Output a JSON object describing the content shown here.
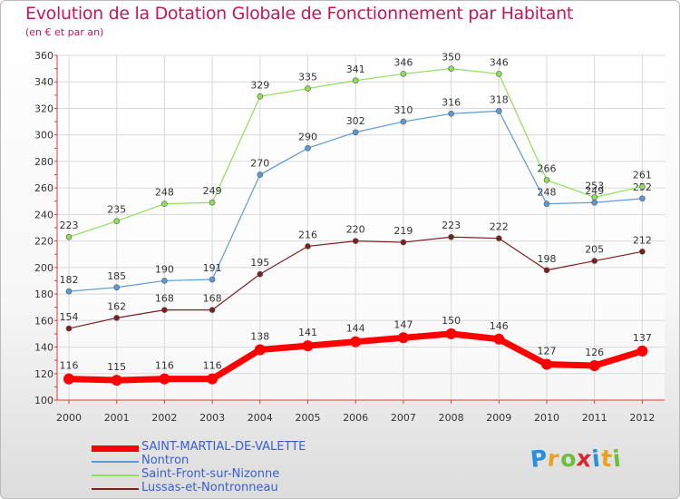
{
  "chart_data": {
    "type": "line",
    "title": "Evolution de la Dotation Globale de Fonctionnement par Habitant",
    "subtitle": "(en € et par an)",
    "xlabel": "",
    "ylabel": "",
    "x": [
      "2000",
      "2001",
      "2002",
      "2003",
      "2004",
      "2005",
      "2006",
      "2007",
      "2008",
      "2009",
      "2010",
      "2011",
      "2012"
    ],
    "ylim": [
      100,
      360
    ],
    "yticks": [
      100,
      120,
      140,
      160,
      180,
      200,
      220,
      240,
      260,
      280,
      300,
      320,
      340,
      360
    ],
    "grid": true,
    "legend_position": "bottom-left",
    "series": [
      {
        "name": "SAINT-MARTIAL-DE-VALETTE",
        "color": "#ff0000",
        "emphasis": true,
        "values": [
          116,
          115,
          116,
          116,
          138,
          141,
          144,
          147,
          150,
          146,
          127,
          126,
          137
        ]
      },
      {
        "name": "Nontron",
        "color": "#5b9bd5",
        "values": [
          182,
          185,
          190,
          191,
          270,
          290,
          302,
          310,
          316,
          318,
          248,
          249,
          252
        ]
      },
      {
        "name": "Saint-Front-sur-Nizonne",
        "color": "#8ee05a",
        "values": [
          223,
          235,
          248,
          249,
          329,
          335,
          341,
          346,
          350,
          346,
          266,
          253,
          261
        ]
      },
      {
        "name": "Lussas-et-Nontronneau",
        "color": "#7b1f1f",
        "values": [
          154,
          162,
          168,
          168,
          195,
          216,
          220,
          219,
          223,
          222,
          198,
          205,
          212
        ]
      }
    ]
  },
  "logo": {
    "letters": [
      "P",
      "r",
      "o",
      "x",
      "i",
      "t",
      "i"
    ],
    "colors": [
      "#2a8fd6",
      "#e8a21c",
      "#6bbf3a",
      "#d8262e",
      "#2a8fd6",
      "#e8a21c",
      "#6bbf3a"
    ]
  }
}
